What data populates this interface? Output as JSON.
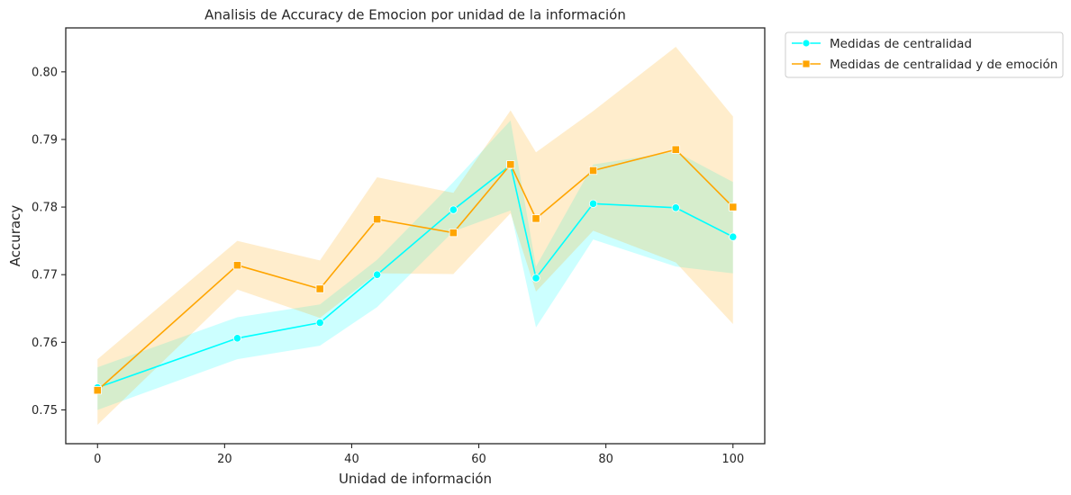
{
  "chart_data": {
    "type": "line",
    "title": "Analisis de Accuracy de Emocion por unidad de la información",
    "xlabel": "Unidad de información",
    "ylabel": "Accuracy",
    "xlim": [
      -5,
      105
    ],
    "ylim": [
      0.745,
      0.8065
    ],
    "xticks": [
      0,
      20,
      40,
      60,
      80,
      100
    ],
    "yticks": [
      0.75,
      0.76,
      0.77,
      0.78,
      0.79,
      0.8
    ],
    "xtick_labels": [
      "0",
      "20",
      "40",
      "60",
      "80",
      "100"
    ],
    "ytick_labels": [
      "0.75",
      "0.76",
      "0.77",
      "0.78",
      "0.79",
      "0.80"
    ],
    "grid": false,
    "legend_position": "outside top-right",
    "series": [
      {
        "name": "Medidas de centralidad",
        "color": "#00FFFF",
        "marker": "circle",
        "x": [
          0,
          22,
          35,
          44,
          56,
          65,
          69,
          78,
          91,
          100
        ],
        "y": [
          0.7533,
          0.7606,
          0.7629,
          0.77,
          0.7796,
          0.7862,
          0.7695,
          0.7805,
          0.7799,
          0.7756
        ],
        "ci_low": [
          0.75,
          0.7575,
          0.7595,
          0.7652,
          0.7764,
          0.7795,
          0.7622,
          0.7752,
          0.7712,
          0.7702
        ],
        "ci_high": [
          0.7563,
          0.7637,
          0.7656,
          0.7722,
          0.7837,
          0.7928,
          0.7712,
          0.7863,
          0.7882,
          0.7837
        ]
      },
      {
        "name": "Medidas de centralidad y de emoción",
        "color": "#FFA500",
        "marker": "square",
        "x": [
          0,
          22,
          35,
          44,
          56,
          65,
          69,
          78,
          91,
          100
        ],
        "y": [
          0.7529,
          0.7714,
          0.7679,
          0.7782,
          0.7762,
          0.7863,
          0.7783,
          0.7854,
          0.7885,
          0.78
        ],
        "ci_low": [
          0.7478,
          0.7678,
          0.7636,
          0.7702,
          0.7701,
          0.7791,
          0.7675,
          0.7765,
          0.7718,
          0.7627
        ],
        "ci_high": [
          0.7575,
          0.775,
          0.7721,
          0.7844,
          0.7821,
          0.7943,
          0.7881,
          0.7942,
          0.8037,
          0.7934
        ]
      }
    ]
  }
}
